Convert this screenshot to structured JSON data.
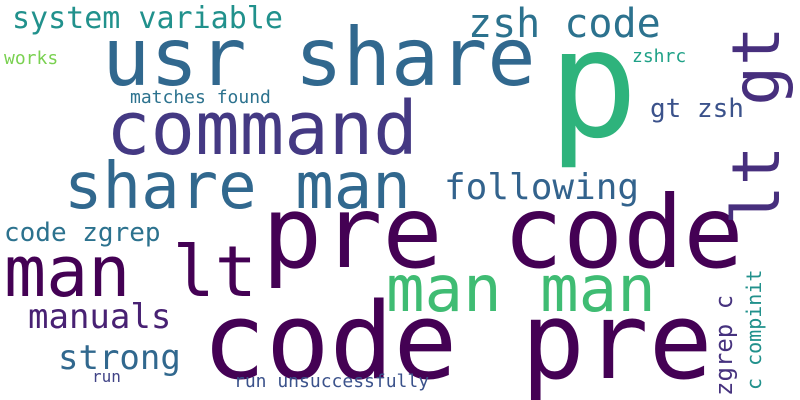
{
  "word_cloud": {
    "words": [
      {
        "id": "p",
        "text": "p",
        "color": "#2eb37c"
      },
      {
        "id": "usr-share",
        "text": "usr share",
        "color": "#31688e"
      },
      {
        "id": "pre-code",
        "text": "pre code",
        "color": "#440154"
      },
      {
        "id": "code-pre",
        "text": "code pre",
        "color": "#440154"
      },
      {
        "id": "command",
        "text": "command",
        "color": "#443983"
      },
      {
        "id": "share-man",
        "text": "share man",
        "color": "#31688e"
      },
      {
        "id": "man-lt",
        "text": "man lt",
        "color": "#440154"
      },
      {
        "id": "man-man",
        "text": "man man",
        "color": "#3fbc73"
      },
      {
        "id": "lt-gt",
        "text": "lt gt",
        "color": "#472f7d"
      },
      {
        "id": "zsh-code",
        "text": "zsh code",
        "color": "#2c728e"
      },
      {
        "id": "following",
        "text": "following",
        "color": "#33638d"
      },
      {
        "id": "system-variable",
        "text": "system variable",
        "color": "#21918c"
      },
      {
        "id": "manuals",
        "text": "manuals",
        "color": "#482173"
      },
      {
        "id": "strong",
        "text": "strong",
        "color": "#31688e"
      },
      {
        "id": "code-zgrep",
        "text": "code zgrep",
        "color": "#2c728e"
      },
      {
        "id": "gt-zsh",
        "text": "gt zsh",
        "color": "#3b528b"
      },
      {
        "id": "zgrep-c",
        "text": "zgrep c",
        "color": "#46327e"
      },
      {
        "id": "c-compinit",
        "text": "c compinit",
        "color": "#21918c"
      },
      {
        "id": "matches-found",
        "text": "matches found",
        "color": "#2c728e"
      },
      {
        "id": "run-unsuccessfully",
        "text": "run unsuccessfully",
        "color": "#3b528b"
      },
      {
        "id": "works",
        "text": "works",
        "color": "#7ad151"
      },
      {
        "id": "zshrc",
        "text": "zshrc",
        "color": "#1fa187"
      },
      {
        "id": "run",
        "text": "run",
        "color": "#414487"
      }
    ]
  }
}
